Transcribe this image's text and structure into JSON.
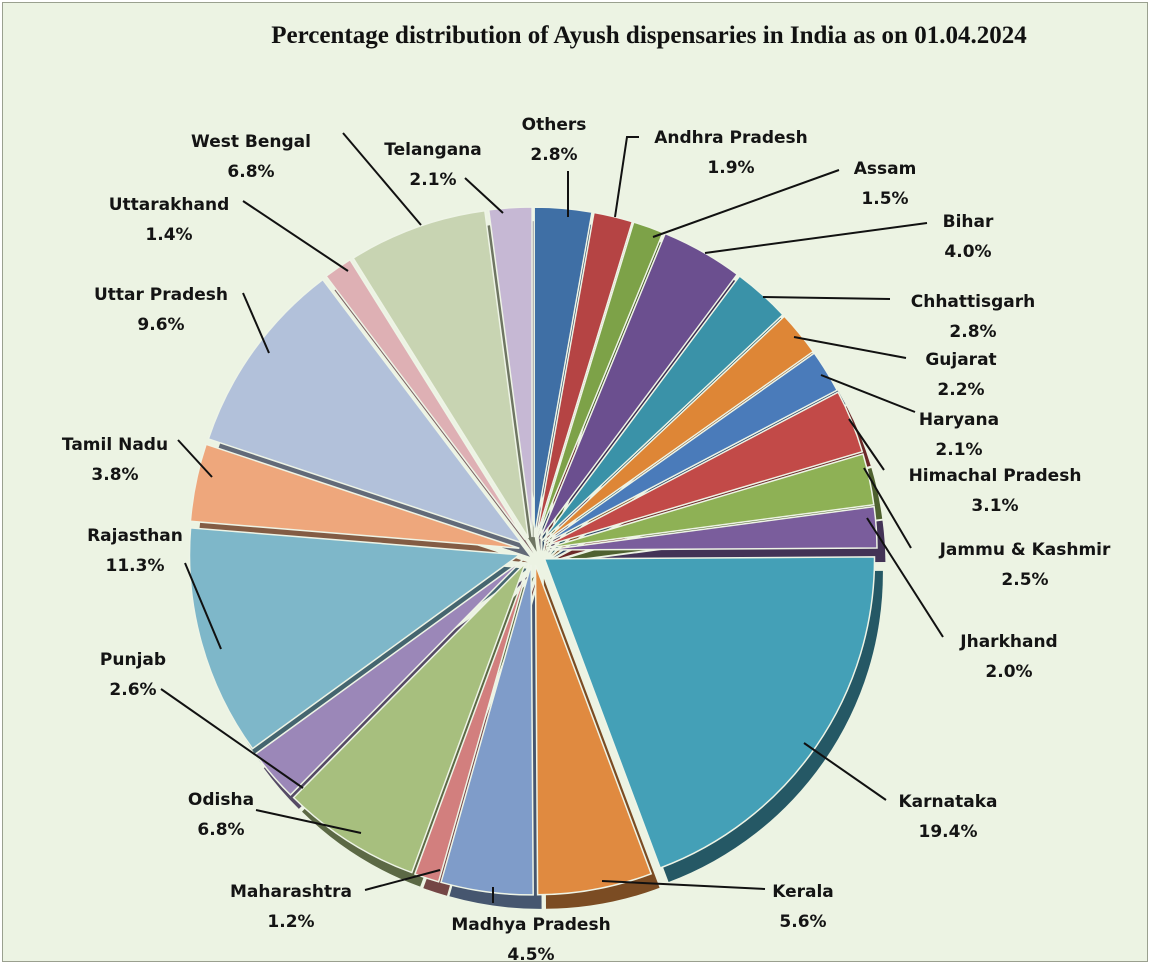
{
  "chart_data": {
    "type": "pie",
    "title": "Percentage distribution of Ayush dispensaries in India as on 01.04.2024",
    "exploded": true,
    "three_d": true,
    "unit": "%",
    "slices": [
      {
        "label": "Others",
        "value": 2.8,
        "value_label": "2.8%",
        "color": "#3f6fa5"
      },
      {
        "label": "Andhra Pradesh",
        "value": 1.9,
        "value_label": "1.9%",
        "color": "#b54444"
      },
      {
        "label": "Assam",
        "value": 1.5,
        "value_label": "1.5%",
        "color": "#7da248"
      },
      {
        "label": "Bihar",
        "value": 4.0,
        "value_label": "4.0%",
        "color": "#6b4f8f"
      },
      {
        "label": "Chhattisgarh",
        "value": 2.8,
        "value_label": "2.8%",
        "color": "#3a92a8"
      },
      {
        "label": "Gujarat",
        "value": 2.2,
        "value_label": "2.2%",
        "color": "#de8636"
      },
      {
        "label": "Haryana",
        "value": 2.1,
        "value_label": "2.1%",
        "color": "#4a7bba"
      },
      {
        "label": "Himachal Pradesh",
        "value": 3.1,
        "value_label": "3.1%",
        "color": "#c24a48"
      },
      {
        "label": "Jammu & Kashmir",
        "value": 2.5,
        "value_label": "2.5%",
        "color": "#8eb155"
      },
      {
        "label": "Jharkhand",
        "value": 2.0,
        "value_label": "2.0%",
        "color": "#7a5d9c"
      },
      {
        "label": "Karnataka",
        "value": 19.4,
        "value_label": "19.4%",
        "color": "#44a0b7"
      },
      {
        "label": "Kerala",
        "value": 5.6,
        "value_label": "5.6%",
        "color": "#e08a40"
      },
      {
        "label": "Madhya Pradesh",
        "value": 4.5,
        "value_label": "4.5%",
        "color": "#7f9cc9"
      },
      {
        "label": "Maharashtra",
        "value": 1.2,
        "value_label": "1.2%",
        "color": "#d27f7e"
      },
      {
        "label": "Odisha",
        "value": 6.8,
        "value_label": "6.8%",
        "color": "#a7bf7e"
      },
      {
        "label": "Punjab",
        "value": 2.6,
        "value_label": "2.6%",
        "color": "#9b87b8"
      },
      {
        "label": "Rajasthan",
        "value": 11.3,
        "value_label": "11.3%",
        "color": "#7eb7c9"
      },
      {
        "label": "Tamil Nadu",
        "value": 3.8,
        "value_label": "3.8%",
        "color": "#eea77c"
      },
      {
        "label": "Uttar Pradesh",
        "value": 9.6,
        "value_label": "9.6%",
        "color": "#b2c1da"
      },
      {
        "label": "Uttarakhand",
        "value": 1.4,
        "value_label": "1.4%",
        "color": "#deb0b4"
      },
      {
        "label": "West Bengal",
        "value": 6.8,
        "value_label": "6.8%",
        "color": "#c8d4b2"
      },
      {
        "label": "Telangana",
        "value": 2.1,
        "value_label": "2.1%",
        "color": "#c6b8d4"
      }
    ]
  }
}
